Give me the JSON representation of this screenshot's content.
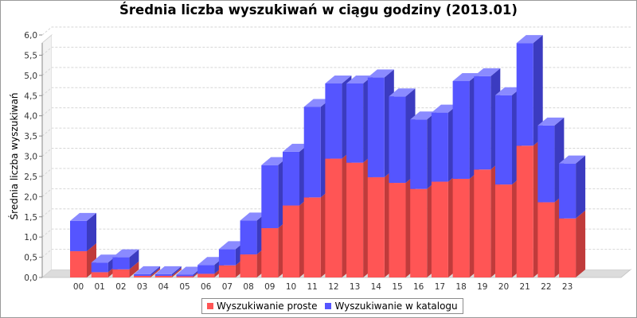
{
  "chart_data": {
    "type": "bar",
    "stacked": true,
    "style": "3d",
    "title": "Średnia liczba wyszukiwań w ciągu godziny (2013.01)",
    "xlabel": "",
    "ylabel": "Średnia liczba wyszukiwań",
    "ylim": [
      0,
      6.0
    ],
    "yticks": [
      "0,0",
      "0,5",
      "1,0",
      "1,5",
      "2,0",
      "2,5",
      "3,0",
      "3,5",
      "4,0",
      "4,5",
      "5,0",
      "5,5",
      "6,0"
    ],
    "grid": true,
    "legend_position": "bottom",
    "categories": [
      "00",
      "01",
      "02",
      "03",
      "04",
      "05",
      "06",
      "07",
      "08",
      "09",
      "10",
      "11",
      "12",
      "13",
      "14",
      "15",
      "16",
      "17",
      "18",
      "19",
      "20",
      "21",
      "22",
      "23"
    ],
    "series": [
      {
        "name": "Wyszukiwanie proste",
        "color": "#ff5555",
        "values": [
          0.65,
          0.13,
          0.2,
          0.04,
          0.04,
          0.03,
          0.09,
          0.3,
          0.57,
          1.22,
          1.78,
          1.98,
          2.94,
          2.84,
          2.48,
          2.34,
          2.19,
          2.37,
          2.44,
          2.67,
          2.3,
          3.26,
          1.86,
          1.46
        ]
      },
      {
        "name": "Wyszukiwanie w katalogu",
        "color": "#5555ff",
        "values": [
          0.75,
          0.24,
          0.3,
          0.04,
          0.04,
          0.04,
          0.22,
          0.4,
          0.84,
          1.56,
          1.33,
          2.24,
          1.86,
          1.96,
          2.47,
          2.14,
          1.72,
          1.71,
          2.42,
          2.31,
          2.21,
          2.54,
          1.9,
          1.36
        ]
      }
    ]
  }
}
